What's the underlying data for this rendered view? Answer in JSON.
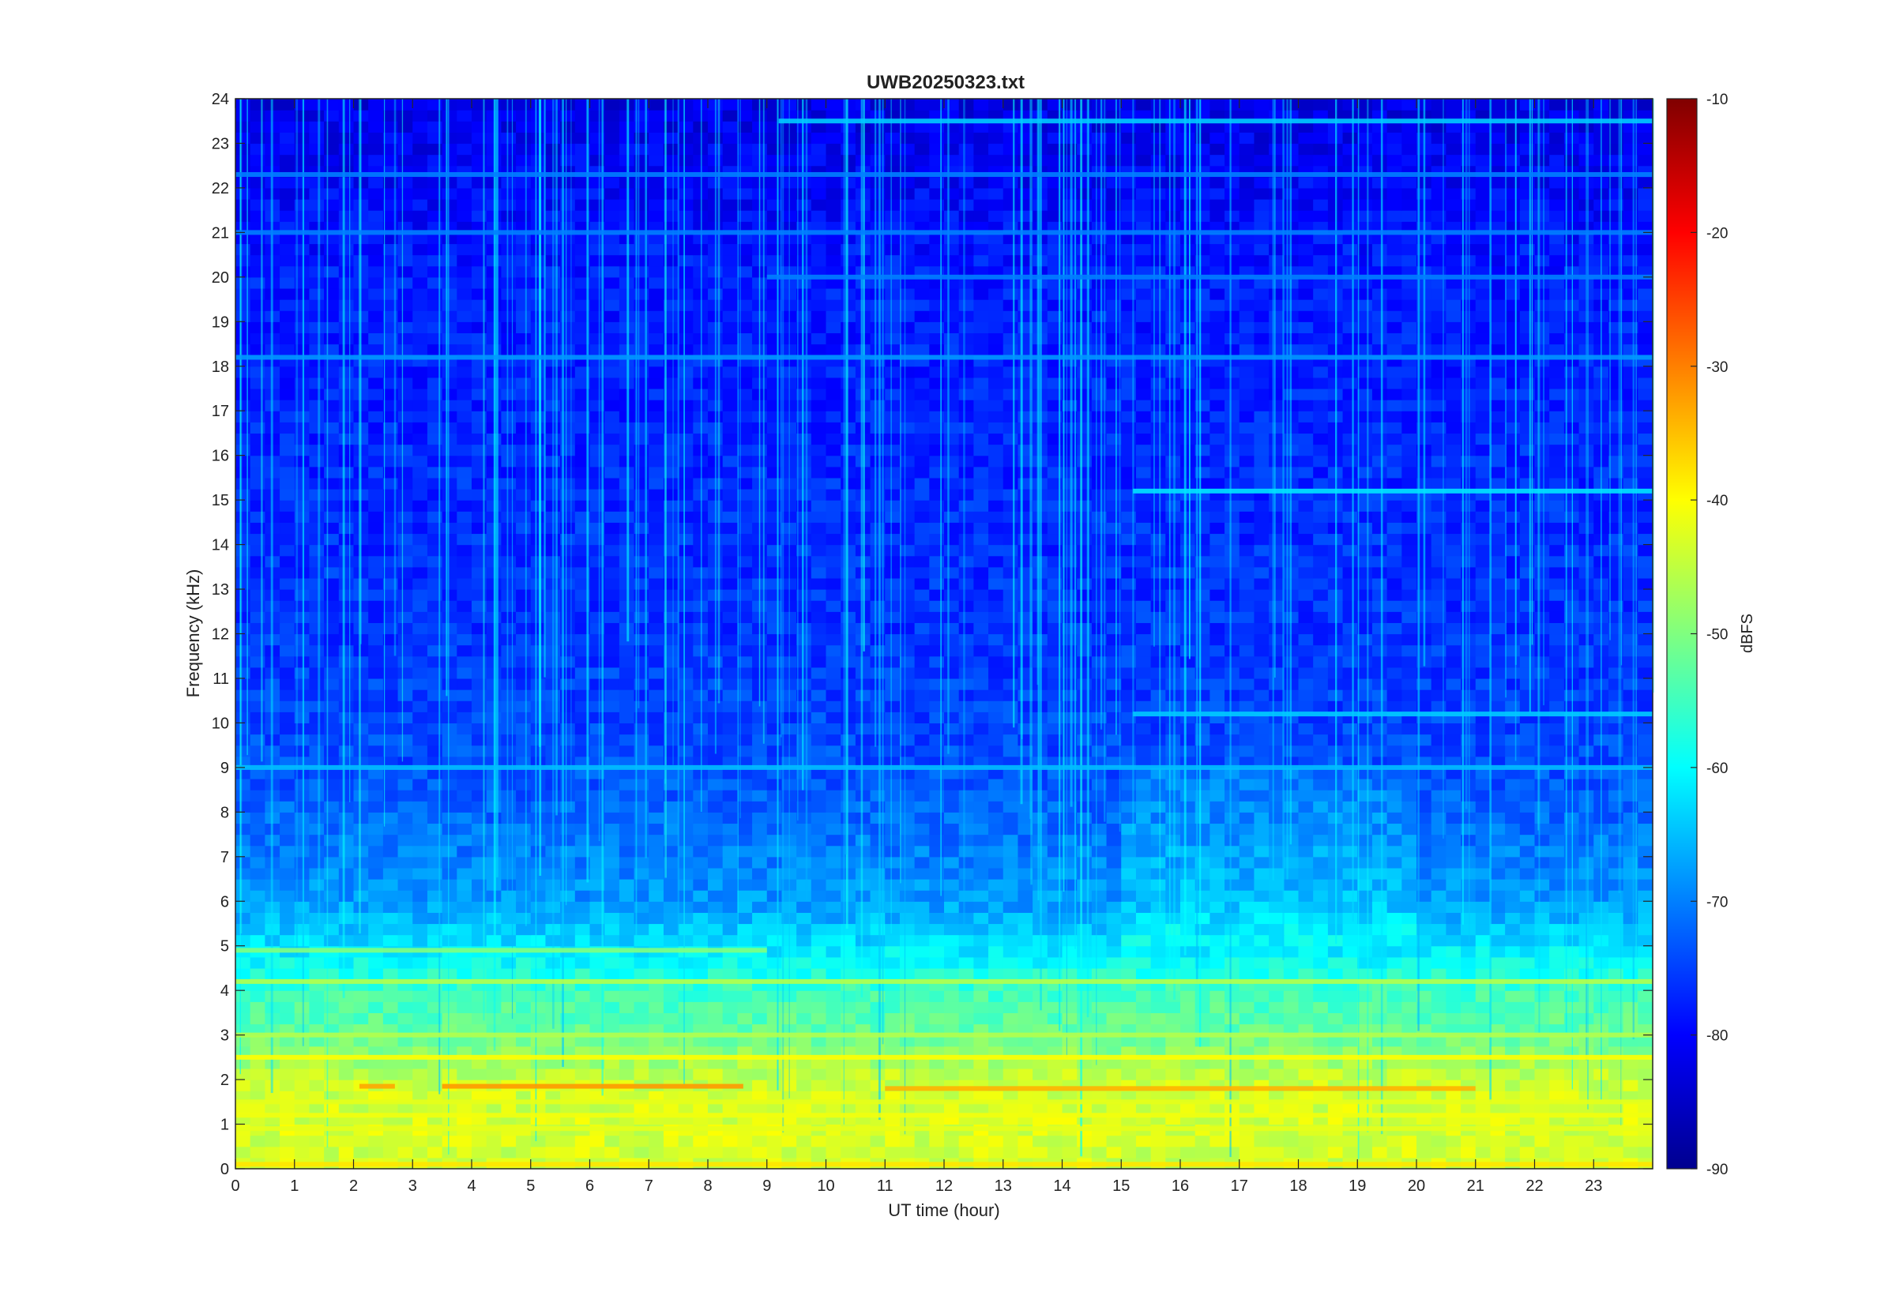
{
  "chart_data": {
    "type": "heatmap",
    "title": "UWB20250323.txt",
    "xlabel": "UT time (hour)",
    "ylabel": "Frequency (kHz)",
    "xlim": [
      0,
      24
    ],
    "ylim": [
      0,
      24
    ],
    "x_ticks": [
      "0",
      "1",
      "2",
      "3",
      "4",
      "5",
      "6",
      "7",
      "8",
      "9",
      "10",
      "11",
      "12",
      "13",
      "14",
      "15",
      "16",
      "17",
      "18",
      "19",
      "20",
      "21",
      "22",
      "23"
    ],
    "y_ticks": [
      "0",
      "1",
      "2",
      "3",
      "4",
      "5",
      "6",
      "7",
      "8",
      "9",
      "10",
      "11",
      "12",
      "13",
      "14",
      "15",
      "16",
      "17",
      "18",
      "19",
      "20",
      "21",
      "22",
      "23",
      "24"
    ],
    "colorbar": {
      "label": "dBFS",
      "range": [
        -90,
        -10
      ],
      "ticks": [
        "-90",
        "-80",
        "-70",
        "-60",
        "-50",
        "-40",
        "-30",
        "-20",
        "-10"
      ],
      "colormap": "jet"
    },
    "grid": false,
    "features": {
      "horizontal_bands": [
        {
          "freq_khz": 0.1,
          "dbfs": -38,
          "hours": [
            0,
            24
          ]
        },
        {
          "freq_khz": 0.9,
          "dbfs": -42,
          "hours": [
            0,
            24
          ]
        },
        {
          "freq_khz": 1.2,
          "dbfs": -41,
          "hours": [
            0,
            24
          ]
        },
        {
          "freq_khz": 1.5,
          "dbfs": -42,
          "hours": [
            0,
            24
          ]
        },
        {
          "freq_khz": 1.85,
          "dbfs": -32,
          "hours": [
            3.5,
            8.6
          ]
        },
        {
          "freq_khz": 1.85,
          "dbfs": -33,
          "hours": [
            2.1,
            2.7
          ]
        },
        {
          "freq_khz": 1.8,
          "dbfs": -34,
          "hours": [
            11,
            21
          ]
        },
        {
          "freq_khz": 2.5,
          "dbfs": -40,
          "hours": [
            0,
            24
          ]
        },
        {
          "freq_khz": 3.0,
          "dbfs": -46,
          "hours": [
            0,
            24
          ]
        },
        {
          "freq_khz": 4.2,
          "dbfs": -46,
          "hours": [
            0,
            24
          ]
        },
        {
          "freq_khz": 4.9,
          "dbfs": -50,
          "hours": [
            0,
            9
          ]
        },
        {
          "freq_khz": 9.0,
          "dbfs": -65,
          "hours": [
            0,
            24
          ]
        },
        {
          "freq_khz": 10.2,
          "dbfs": -64,
          "hours": [
            15.2,
            24
          ]
        },
        {
          "freq_khz": 15.2,
          "dbfs": -62,
          "hours": [
            15.2,
            24
          ]
        },
        {
          "freq_khz": 18.2,
          "dbfs": -68,
          "hours": [
            0,
            24
          ]
        },
        {
          "freq_khz": 20.0,
          "dbfs": -70,
          "hours": [
            9,
            24
          ]
        },
        {
          "freq_khz": 21.0,
          "dbfs": -70,
          "hours": [
            0,
            24
          ]
        },
        {
          "freq_khz": 22.3,
          "dbfs": -70,
          "hours": [
            0,
            24
          ]
        },
        {
          "freq_khz": 23.5,
          "dbfs": -64,
          "hours": [
            9.2,
            24
          ]
        }
      ],
      "background_dbfs_by_freq": [
        [
          0,
          -44
        ],
        [
          1,
          -43
        ],
        [
          2,
          -44
        ],
        [
          3,
          -52
        ],
        [
          4,
          -55
        ],
        [
          5,
          -62
        ],
        [
          6,
          -68
        ],
        [
          7,
          -70
        ],
        [
          8,
          -72
        ],
        [
          9,
          -74
        ],
        [
          12,
          -76
        ],
        [
          16,
          -77
        ],
        [
          20,
          -78
        ],
        [
          22,
          -80
        ],
        [
          24,
          -82
        ]
      ]
    }
  }
}
